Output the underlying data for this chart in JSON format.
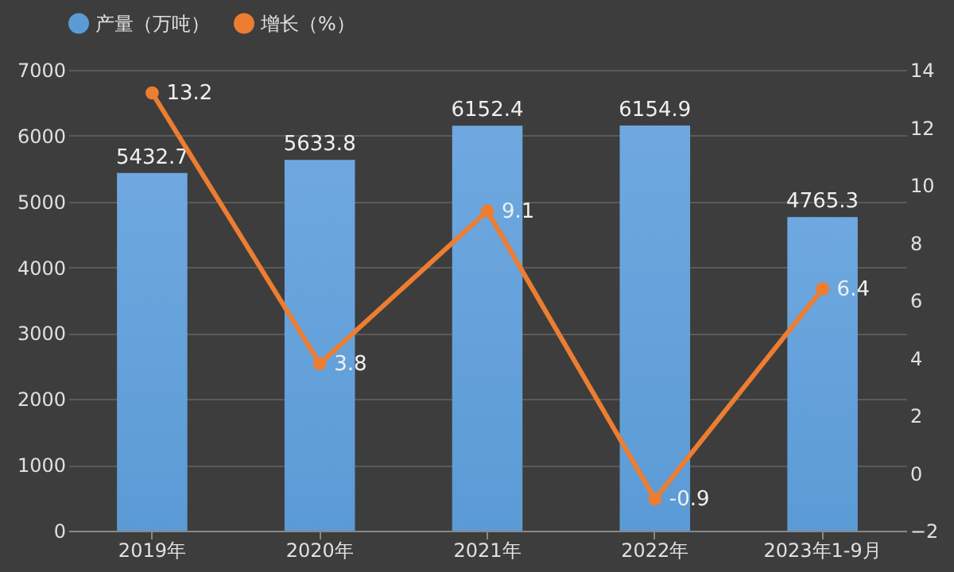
{
  "chart_data": {
    "type": "bar",
    "categories": [
      "2019年",
      "2020年",
      "2021年",
      "2022年",
      "2023年1-9月"
    ],
    "series": [
      {
        "name": "产量（万吨）",
        "color": "#5b9bd5",
        "values": [
          5432.7,
          5633.8,
          6152.4,
          6154.9,
          4765.3
        ]
      },
      {
        "name": "增长（%）",
        "type": "line",
        "axis": "y2",
        "color": "#ed7d31",
        "values": [
          13.2,
          3.8,
          9.1,
          -0.9,
          6.4
        ]
      }
    ],
    "ylim": [
      0,
      7000
    ],
    "yticks": [
      0,
      1000,
      2000,
      3000,
      4000,
      5000,
      6000,
      7000
    ],
    "y2lim": [
      -2,
      14
    ],
    "y2ticks": [
      -2,
      0,
      2,
      4,
      6,
      8,
      10,
      12,
      14
    ],
    "grid": "y",
    "legend": "top",
    "marker": "circle",
    "data_labels": true
  }
}
